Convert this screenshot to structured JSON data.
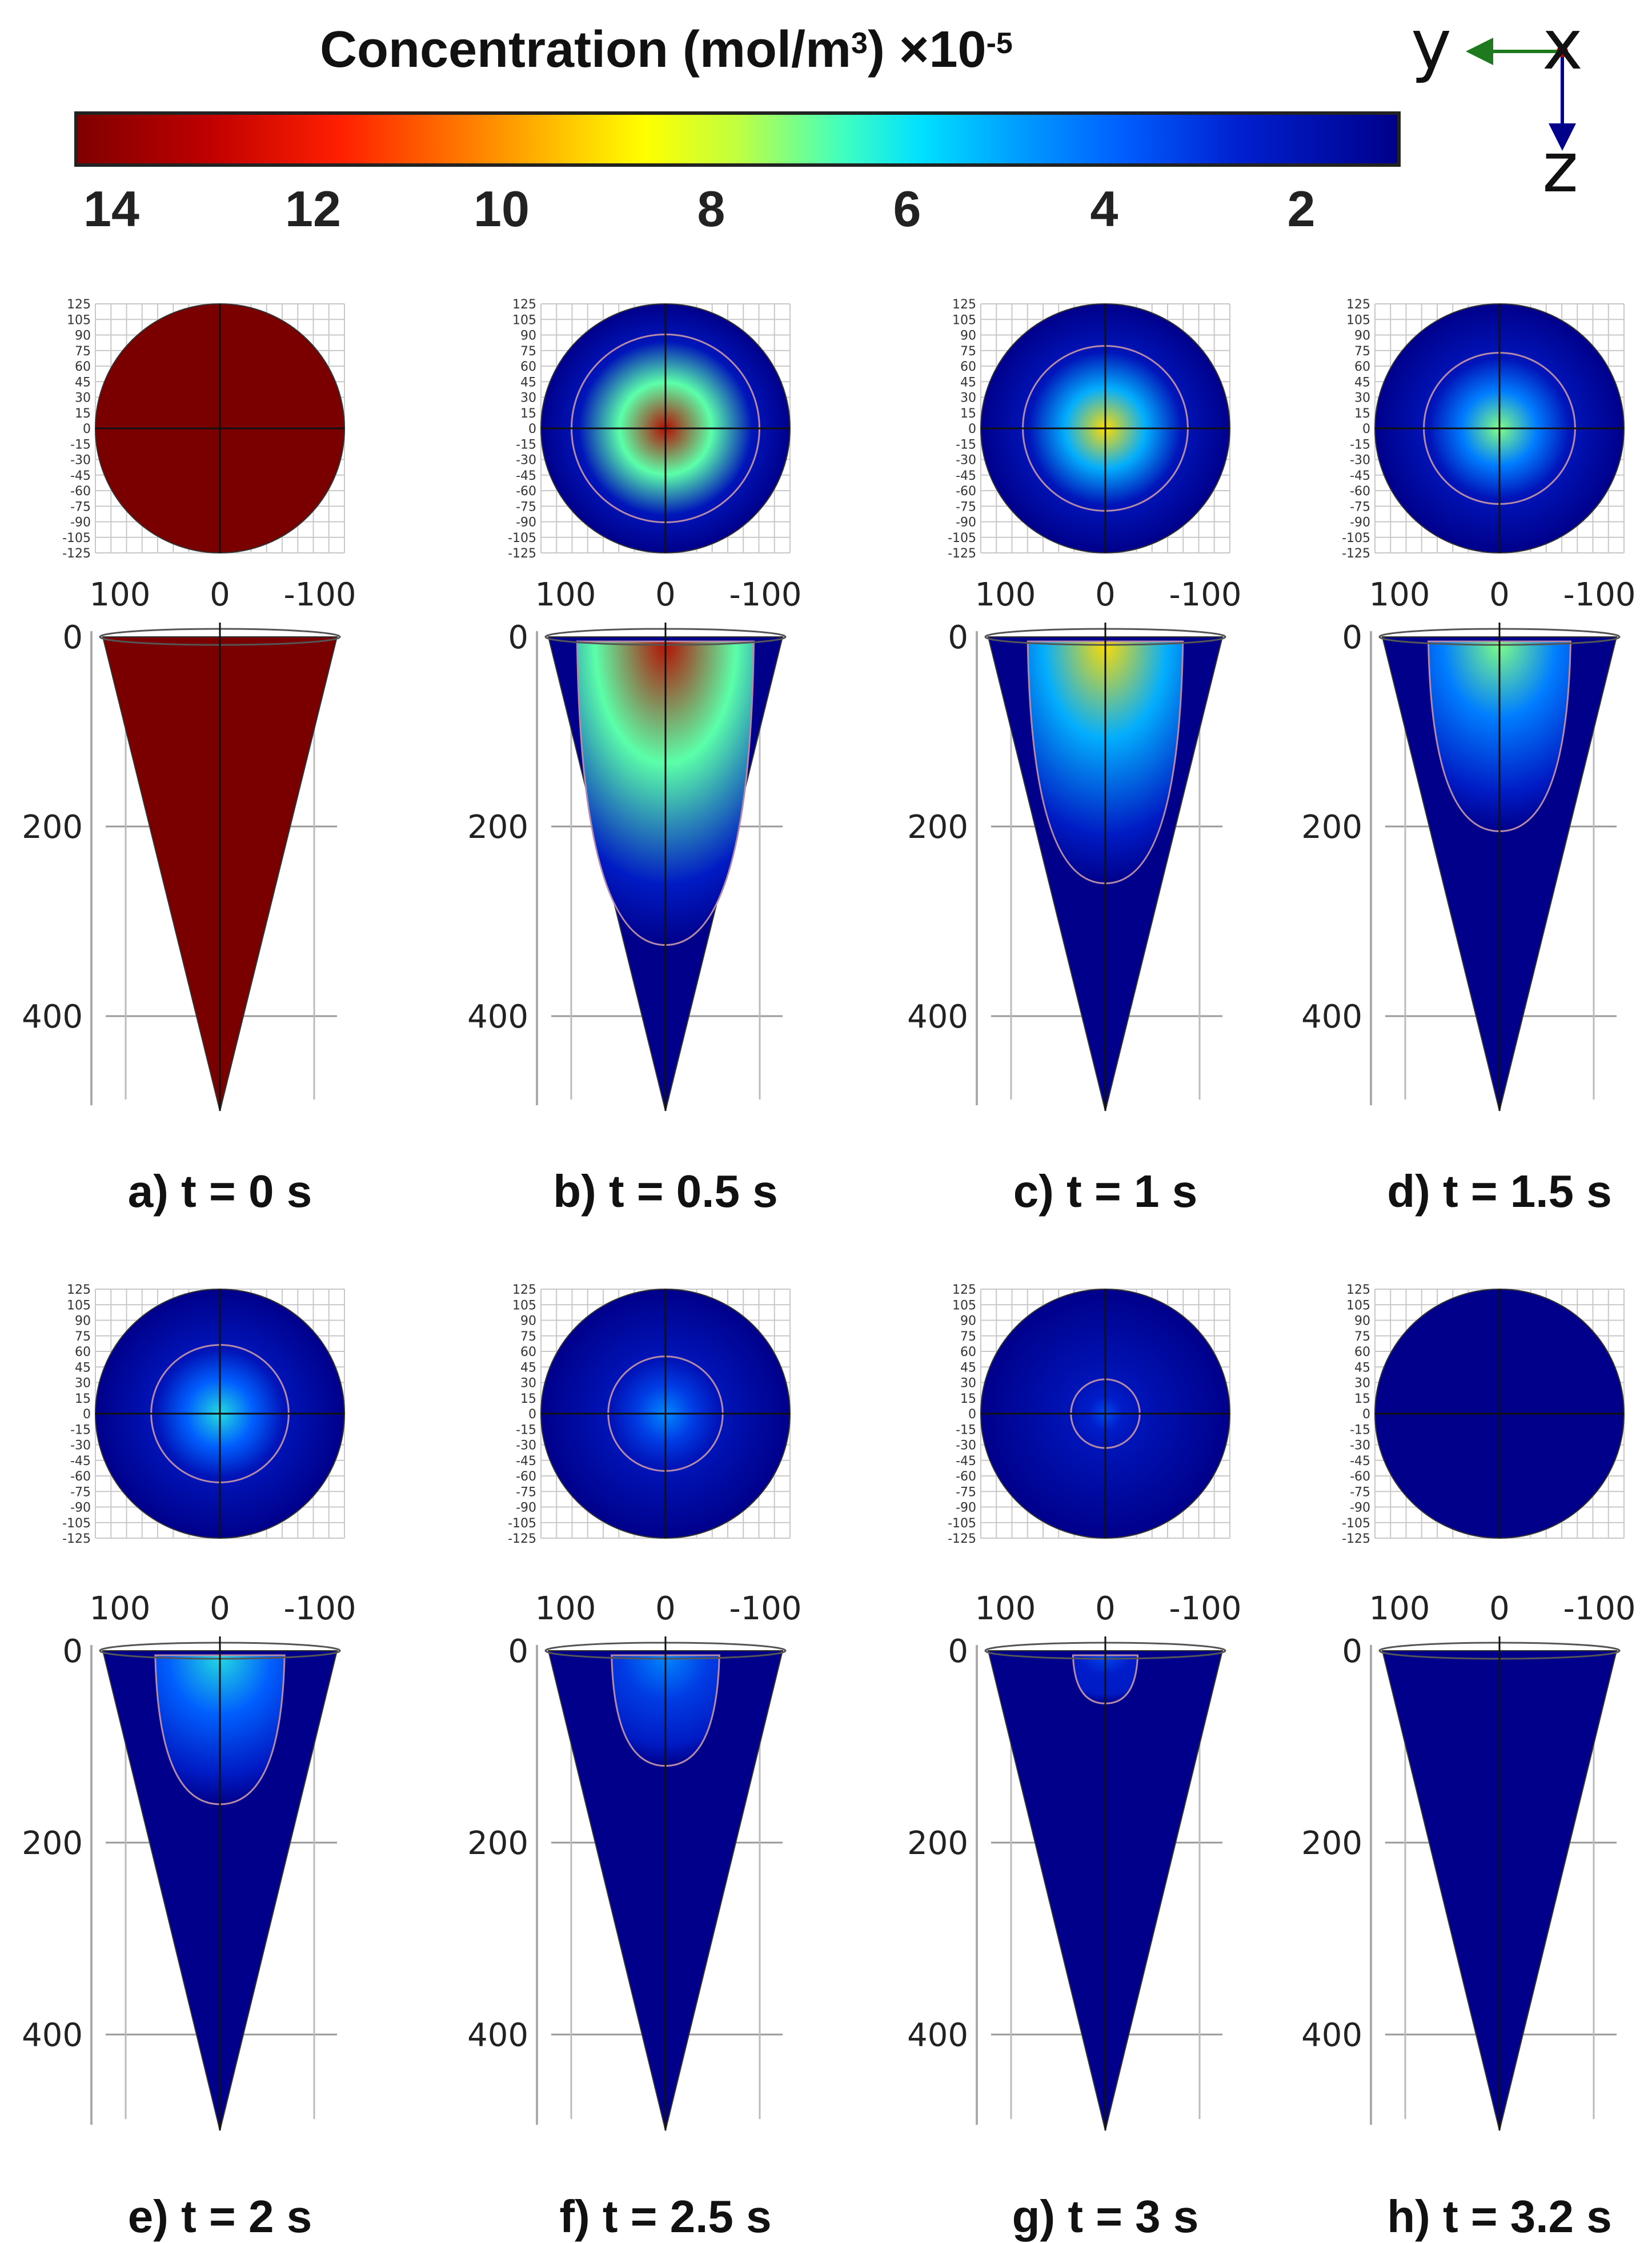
{
  "colorbar": {
    "title_main": "Concentration (mol/m",
    "title_sup1": "3",
    "title_mid": ") ×10",
    "title_sup2": "-5",
    "ticks": [
      "14",
      "12",
      "10",
      "8",
      "6",
      "4",
      "2"
    ],
    "colors": [
      "#800000",
      "#ff0000",
      "#ffff00",
      "#00ffff",
      "#0000ff",
      "#00008a"
    ]
  },
  "axes_triad": {
    "y": "y",
    "x": "x",
    "z": "z",
    "y_color": "#1f7a1f",
    "x_color": "#c00000",
    "z_color": "#00008a"
  },
  "top_view_ticks": [
    "125",
    "105",
    "90",
    "75",
    "60",
    "45",
    "30",
    "15",
    "0",
    "-15",
    "-30",
    "-45",
    "-60",
    "-75",
    "-90",
    "-105",
    "-125"
  ],
  "side_view_x_ticks": [
    "100",
    "0",
    "-100"
  ],
  "side_view_z_ticks": [
    "0",
    "200",
    "400"
  ],
  "panels": [
    {
      "label": "a) t = 0 s",
      "core_level": 1.0,
      "core_radius_frac": 1.0,
      "boundary_depth": 500
    },
    {
      "label": "b) t = 0.5 s",
      "core_level": 0.95,
      "core_radius_frac": 0.82,
      "boundary_depth": 325
    },
    {
      "label": "c) t = 1 s",
      "core_level": 0.7,
      "core_radius_frac": 0.72,
      "boundary_depth": 260
    },
    {
      "label": "d) t = 1.5 s",
      "core_level": 0.55,
      "core_radius_frac": 0.66,
      "boundary_depth": 205
    },
    {
      "label": "e) t = 2 s",
      "core_level": 0.45,
      "core_radius_frac": 0.6,
      "boundary_depth": 160
    },
    {
      "label": "f) t = 2.5 s",
      "core_level": 0.32,
      "core_radius_frac": 0.5,
      "boundary_depth": 120
    },
    {
      "label": "g) t = 3 s",
      "core_level": 0.2,
      "core_radius_frac": 0.3,
      "boundary_depth": 55
    },
    {
      "label": "h) t = 3.2 s",
      "core_level": 0.0,
      "core_radius_frac": 0.0,
      "boundary_depth": 0
    }
  ]
}
